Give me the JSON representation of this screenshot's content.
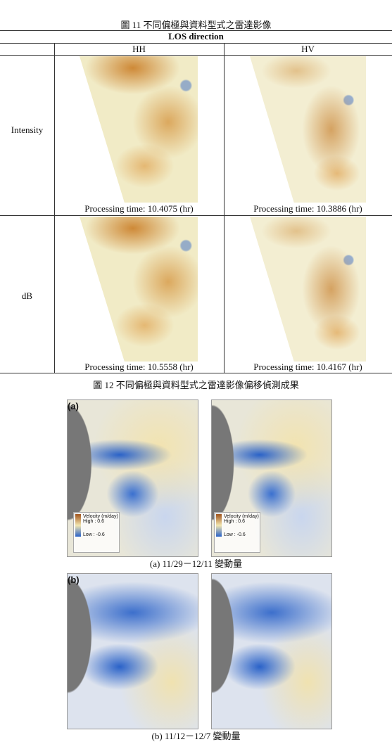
{
  "figure11": {
    "caption": "圖 11 不同偏極與資料型式之雷達影像"
  },
  "table": {
    "header": "LOS direction",
    "columns": [
      "HH",
      "HV"
    ],
    "rows": [
      {
        "label": "Intensity",
        "cells": [
          "Processing time: 10.4075 (hr)",
          "Processing time: 10.3886 (hr)"
        ]
      },
      {
        "label": "dB",
        "cells": [
          "Processing time: 10.5558 (hr)",
          "Processing time: 10.4167 (hr)"
        ]
      }
    ]
  },
  "figure12": {
    "caption": "圖 12 不同偏極與資料型式之雷達影像偏移偵測成果",
    "panels": [
      {
        "label": "(a)",
        "caption": "(a) 11/29－12/11 變動量",
        "legends": [
          {
            "title": "Velocity (m/day)",
            "high": "High : 0.6",
            "low": "Low : -0.6"
          },
          {
            "title": "Velocity (m/day)",
            "high": "High : 0.6",
            "low": "Low : -0.6"
          }
        ]
      },
      {
        "label": "(b)",
        "caption": "(b) 11/12－12/7 變動量"
      }
    ]
  }
}
